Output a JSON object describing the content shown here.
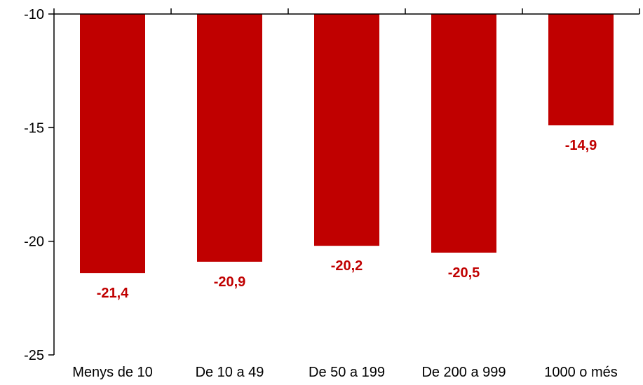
{
  "chart_data": {
    "type": "bar",
    "categories": [
      "Menys de 10",
      "De 10 a 49",
      "De 50 a 199",
      "De 200 a 999",
      "1000 o més"
    ],
    "values": [
      -21.4,
      -20.9,
      -20.2,
      -20.5,
      -14.9
    ],
    "value_labels": [
      "-21,4",
      "-20,9",
      "-20,2",
      "-20,5",
      "-14,9"
    ],
    "ylim": [
      -25,
      -10
    ],
    "yticks": [
      -10,
      -15,
      -20,
      -25
    ],
    "ytick_labels": [
      "-10",
      "-15",
      "-20",
      "-25"
    ],
    "bar_color": "#c00000",
    "label_color": "#c00000",
    "grid": false,
    "legend": "none"
  }
}
